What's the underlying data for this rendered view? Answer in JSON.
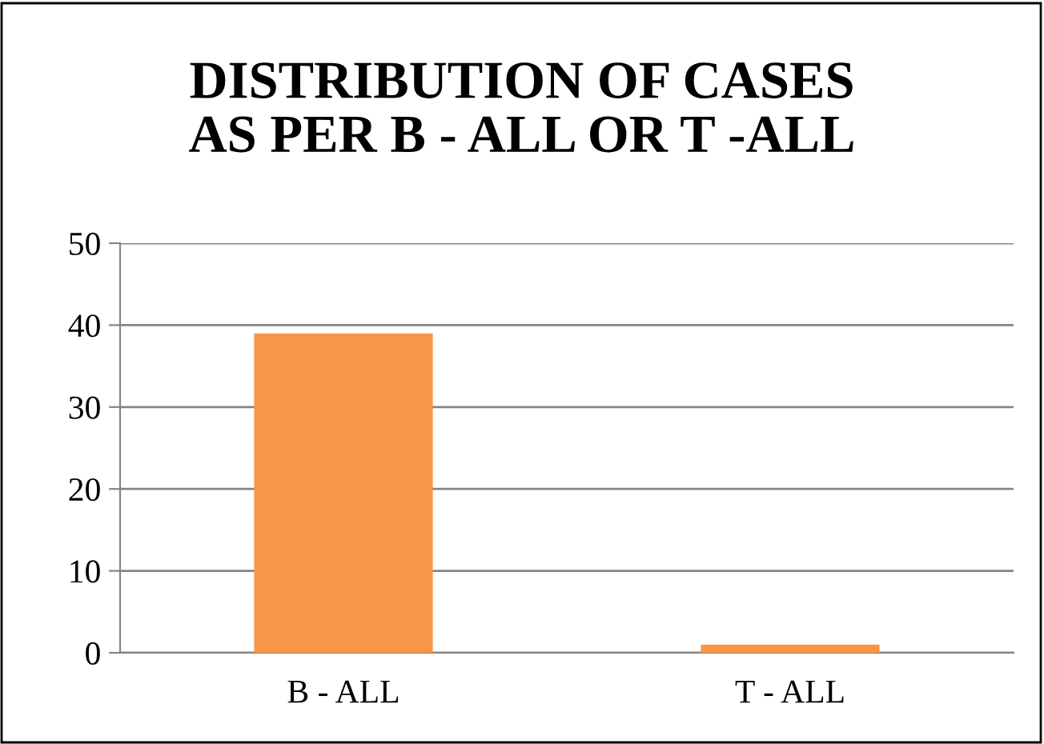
{
  "chart_data": {
    "type": "bar",
    "title": "DISTRIBUTION OF CASES\nAS PER B - ALL OR T -ALL",
    "categories": [
      "B - ALL",
      "T - ALL"
    ],
    "values": [
      39,
      1
    ],
    "color": "#f79646",
    "ylim": [
      0,
      50
    ],
    "yticks": [
      0,
      10,
      20,
      30,
      40,
      50
    ],
    "grid": "y"
  }
}
